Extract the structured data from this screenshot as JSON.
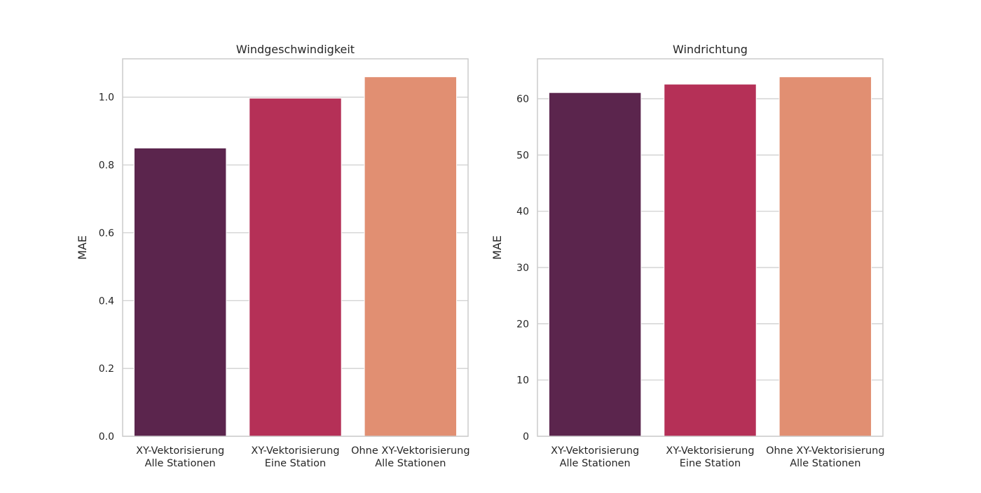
{
  "chart_data": [
    {
      "type": "bar",
      "title": "Windgeschwindigkeit",
      "xlabel": "",
      "ylabel": "MAE",
      "categories": [
        [
          "XY-Vektorisierung",
          "Alle Stationen"
        ],
        [
          "XY-Vektorisierung",
          "Eine Station"
        ],
        [
          "Ohne XY-Vektorisierung",
          "Alle Stationen"
        ]
      ],
      "values": [
        0.85,
        0.997,
        1.06
      ],
      "colors": [
        "#5b254d",
        "#b53057",
        "#e18f72"
      ],
      "ylim": [
        0,
        1.113
      ],
      "yticks": [
        0.0,
        0.2,
        0.4,
        0.6,
        0.8,
        1.0
      ],
      "ytick_labels": [
        "0.0",
        "0.2",
        "0.4",
        "0.6",
        "0.8",
        "1.0"
      ],
      "grid": "y",
      "legend": "none"
    },
    {
      "type": "bar",
      "title": "Windrichtung",
      "xlabel": "",
      "ylabel": "MAE",
      "categories": [
        [
          "XY-Vektorisierung",
          "Alle Stationen"
        ],
        [
          "XY-Vektorisierung",
          "Eine Station"
        ],
        [
          "Ohne XY-Vektorisierung",
          "Alle Stationen"
        ]
      ],
      "values": [
        61.1,
        62.6,
        63.9
      ],
      "colors": [
        "#5b254d",
        "#b53057",
        "#e18f72"
      ],
      "ylim": [
        0,
        67.1
      ],
      "yticks": [
        0,
        10,
        20,
        30,
        40,
        50,
        60
      ],
      "ytick_labels": [
        "0",
        "10",
        "20",
        "30",
        "40",
        "50",
        "60"
      ],
      "grid": "y",
      "legend": "none"
    }
  ]
}
